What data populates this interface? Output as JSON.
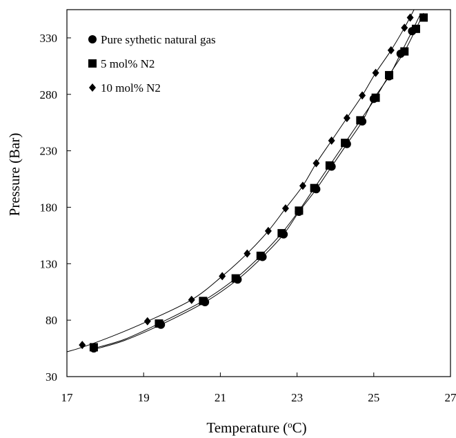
{
  "chart_data": {
    "type": "scatter",
    "title": "",
    "xlabel": "Temperature",
    "xlabel_unit_prefix": "(",
    "xlabel_unit_superscript": "o",
    "xlabel_unit_suffix": "C)",
    "ylabel": "Pressure (Bar)",
    "xlim": [
      17,
      27
    ],
    "ylim": [
      30,
      355
    ],
    "xticks": [
      17,
      19,
      21,
      23,
      25,
      27
    ],
    "yticks": [
      30,
      80,
      130,
      180,
      230,
      280,
      330
    ],
    "grid": false,
    "legend_position": "top-left",
    "series": [
      {
        "name": "Pure sythetic natural gas",
        "marker": "circle",
        "color": "#000000",
        "points": [
          [
            17.7,
            55
          ],
          [
            19.45,
            76
          ],
          [
            20.6,
            96
          ],
          [
            21.45,
            116
          ],
          [
            22.1,
            136
          ],
          [
            22.65,
            156
          ],
          [
            23.05,
            176
          ],
          [
            23.5,
            196
          ],
          [
            23.9,
            216
          ],
          [
            24.3,
            236
          ],
          [
            24.7,
            256
          ],
          [
            25.0,
            276
          ],
          [
            25.4,
            296
          ],
          [
            25.7,
            316
          ],
          [
            26.0,
            336
          ]
        ]
      },
      {
        "name": "5 mol% N2",
        "marker": "square",
        "color": "#000000",
        "points": [
          [
            17.7,
            56
          ],
          [
            19.4,
            77
          ],
          [
            20.55,
            97
          ],
          [
            21.4,
            117
          ],
          [
            22.05,
            137
          ],
          [
            22.6,
            157
          ],
          [
            23.05,
            177
          ],
          [
            23.45,
            197
          ],
          [
            23.85,
            217
          ],
          [
            24.25,
            237
          ],
          [
            24.65,
            257
          ],
          [
            25.05,
            277
          ],
          [
            25.4,
            297
          ],
          [
            25.8,
            318
          ],
          [
            26.1,
            338
          ],
          [
            26.3,
            348
          ]
        ]
      },
      {
        "name": "10 mol% N2",
        "marker": "diamond",
        "color": "#000000",
        "points": [
          [
            17.4,
            58
          ],
          [
            19.1,
            79
          ],
          [
            20.25,
            98
          ],
          [
            21.05,
            119
          ],
          [
            21.7,
            139
          ],
          [
            22.25,
            159
          ],
          [
            22.7,
            179
          ],
          [
            23.15,
            199
          ],
          [
            23.5,
            219
          ],
          [
            23.9,
            239
          ],
          [
            24.3,
            259
          ],
          [
            24.7,
            279
          ],
          [
            25.05,
            299
          ],
          [
            25.45,
            319
          ],
          [
            25.8,
            339
          ],
          [
            25.95,
            348
          ]
        ]
      }
    ],
    "trend_lines": [
      {
        "series": "Pure sythetic natural gas",
        "points": [
          [
            17.7,
            54
          ],
          [
            18.5,
            62
          ],
          [
            19.45,
            76
          ],
          [
            20.6,
            96
          ],
          [
            21.45,
            116
          ],
          [
            22.1,
            136
          ],
          [
            22.65,
            156
          ],
          [
            23.05,
            176
          ],
          [
            23.5,
            196
          ],
          [
            23.9,
            216
          ],
          [
            24.3,
            236
          ],
          [
            24.7,
            256
          ],
          [
            25.0,
            276
          ],
          [
            25.4,
            296
          ],
          [
            25.7,
            316
          ],
          [
            26.0,
            336
          ],
          [
            26.2,
            350
          ]
        ]
      },
      {
        "series": "5 mol% N2",
        "points": [
          [
            17.7,
            55
          ],
          [
            18.5,
            63
          ],
          [
            19.4,
            77
          ],
          [
            20.55,
            97
          ],
          [
            21.4,
            117
          ],
          [
            22.05,
            137
          ],
          [
            22.6,
            157
          ],
          [
            23.05,
            177
          ],
          [
            23.45,
            197
          ],
          [
            23.85,
            217
          ],
          [
            24.25,
            237
          ],
          [
            24.65,
            257
          ],
          [
            25.05,
            277
          ],
          [
            25.4,
            297
          ],
          [
            25.8,
            318
          ],
          [
            26.1,
            338
          ],
          [
            26.3,
            352
          ]
        ]
      },
      {
        "series": "10 mol% N2",
        "points": [
          [
            17.0,
            52
          ],
          [
            17.4,
            56
          ],
          [
            18.2,
            66
          ],
          [
            19.1,
            79
          ],
          [
            20.25,
            98
          ],
          [
            21.05,
            119
          ],
          [
            21.7,
            139
          ],
          [
            22.25,
            159
          ],
          [
            22.7,
            179
          ],
          [
            23.15,
            199
          ],
          [
            23.5,
            219
          ],
          [
            23.9,
            239
          ],
          [
            24.3,
            259
          ],
          [
            24.7,
            279
          ],
          [
            25.05,
            299
          ],
          [
            25.45,
            319
          ],
          [
            25.8,
            339
          ],
          [
            26.05,
            355
          ]
        ]
      }
    ]
  }
}
